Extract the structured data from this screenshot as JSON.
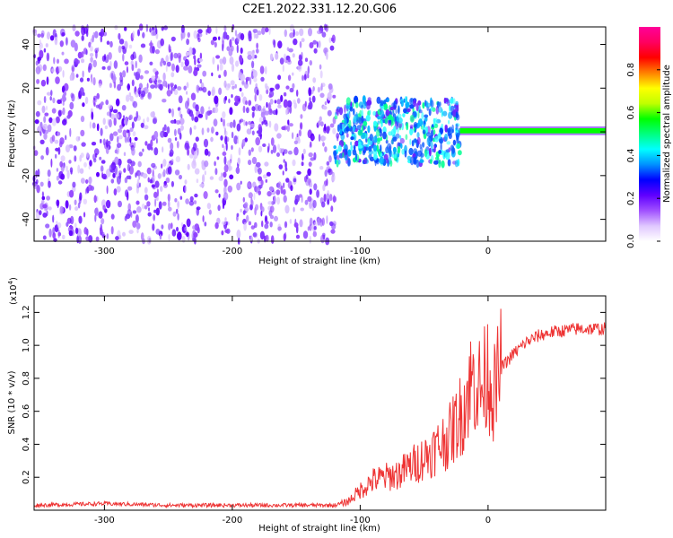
{
  "title": "C2E1.2022.331.12.20.G06",
  "chart_data": [
    {
      "type": "heatmap",
      "xlabel": "Height of straight line (km)",
      "ylabel": "Frequency (Hz)",
      "xlim": [
        -355,
        92
      ],
      "ylim": [
        -50,
        48
      ],
      "xticks": [
        -300,
        -200,
        -100,
        0
      ],
      "yticks": [
        -40,
        -20,
        0,
        20,
        40
      ],
      "colorbar": {
        "label": "Normalized spectral amplitude",
        "range": [
          0,
          1
        ],
        "ticks": [
          "0.0",
          "0.2",
          "0.4",
          "0.6",
          "0.8"
        ],
        "colors": [
          "#ffffff",
          "#e0c8ff",
          "#a050ff",
          "#6000ff",
          "#0000ff",
          "#0090ff",
          "#00ffff",
          "#00ff80",
          "#00ff00",
          "#c0ff00",
          "#ffff00",
          "#ff8000",
          "#ff0000",
          "#ff0060",
          "#ff0099"
        ]
      },
      "regions": [
        {
          "x_range": [
            -355,
            -120
          ],
          "freq_range": [
            -50,
            48
          ],
          "level": "low",
          "dominant_color": "#7020ff"
        },
        {
          "x_range": [
            -120,
            -22
          ],
          "freq_range": [
            -15,
            15
          ],
          "level": "medium",
          "dominant_color": "#2060ff"
        },
        {
          "x_range": [
            -22,
            92
          ],
          "freq_range": [
            -1.5,
            2.5
          ],
          "level": "high",
          "dominant_color": "#00ff00"
        }
      ]
    },
    {
      "type": "line",
      "xlabel": "Height of straight line (km)",
      "ylabel": "SNR (10 * v/v)",
      "yscale_label": "(x10",
      "yscale_exp": "4",
      "xlim": [
        -355,
        92
      ],
      "ylim": [
        0,
        1.3
      ],
      "xticks": [
        -300,
        -200,
        -100,
        0
      ],
      "yticks": [
        0.2,
        0.4,
        0.6,
        0.8,
        1.0,
        1.2
      ],
      "color": "#ee3333",
      "x": [
        -355,
        -300,
        -250,
        -200,
        -150,
        -120,
        -110,
        -100,
        -90,
        -80,
        -70,
        -60,
        -50,
        -40,
        -30,
        -20,
        -15,
        -10,
        -5,
        0,
        5,
        10,
        20,
        30,
        40,
        50,
        60,
        70,
        80,
        92
      ],
      "y": [
        0.03,
        0.04,
        0.03,
        0.03,
        0.03,
        0.03,
        0.05,
        0.12,
        0.18,
        0.2,
        0.22,
        0.27,
        0.32,
        0.38,
        0.45,
        0.6,
        0.75,
        0.8,
        0.72,
        0.85,
        0.7,
        0.86,
        0.95,
        1.02,
        1.06,
        1.08,
        1.09,
        1.1,
        1.1,
        1.1
      ]
    }
  ]
}
